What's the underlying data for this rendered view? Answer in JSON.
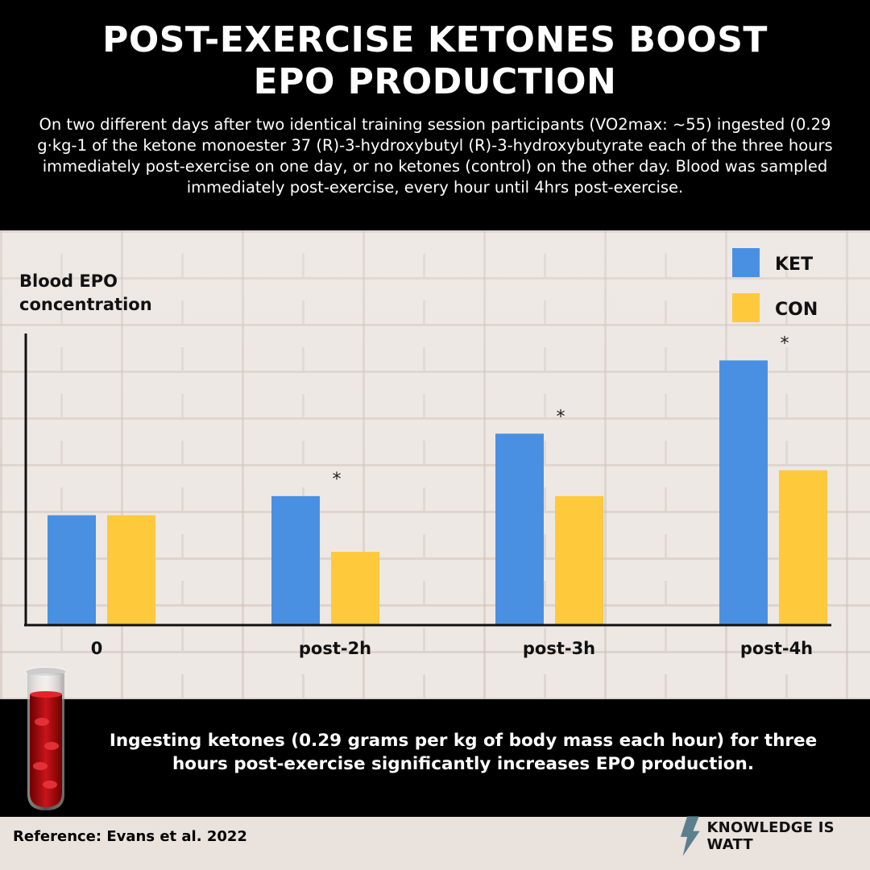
{
  "header": {
    "title": "POST-EXERCISE KETONES BOOST EPO PRODUCTION",
    "description": "On two different days after two identical training session participants (VO2max: ~55) ingested (0.29 g·kg-1 of the ketone monoester 37 (R)-3-hydroxybutyl (R)-3-hydroxybutyrate each of the three hours immediately post-exercise on one day, or no ketones (control) on the other day. Blood was sampled immediately post-exercise, every hour until 4hrs post-exercise."
  },
  "chart_data": {
    "type": "bar",
    "ylabel": "Blood EPO concentration",
    "ylabel_lines": [
      "Blood EPO",
      "concentration"
    ],
    "categories": [
      "0",
      "post-2h",
      "post-3h",
      "post-4h"
    ],
    "series": [
      {
        "name": "KET",
        "color": "#4a90e2",
        "values": [
          132,
          155,
          230,
          318
        ]
      },
      {
        "name": "CON",
        "color": "#ffc93c",
        "values": [
          132,
          88,
          155,
          186
        ]
      }
    ],
    "significance": [
      "",
      "*",
      "*",
      "*"
    ],
    "ylim": [
      0,
      360
    ],
    "legend_position": "top-right",
    "grid": false
  },
  "footer": {
    "message": "Ingesting ketones (0.29 grams per kg of body mass each hour) for three hours post-exercise significantly increases EPO production.",
    "reference": "Reference: Evans et al. 2022",
    "brand": "KNOWLEDGE IS WATT"
  },
  "icons": {
    "tube": "blood-tube-icon",
    "bolt": "lightning-bolt-icon"
  }
}
